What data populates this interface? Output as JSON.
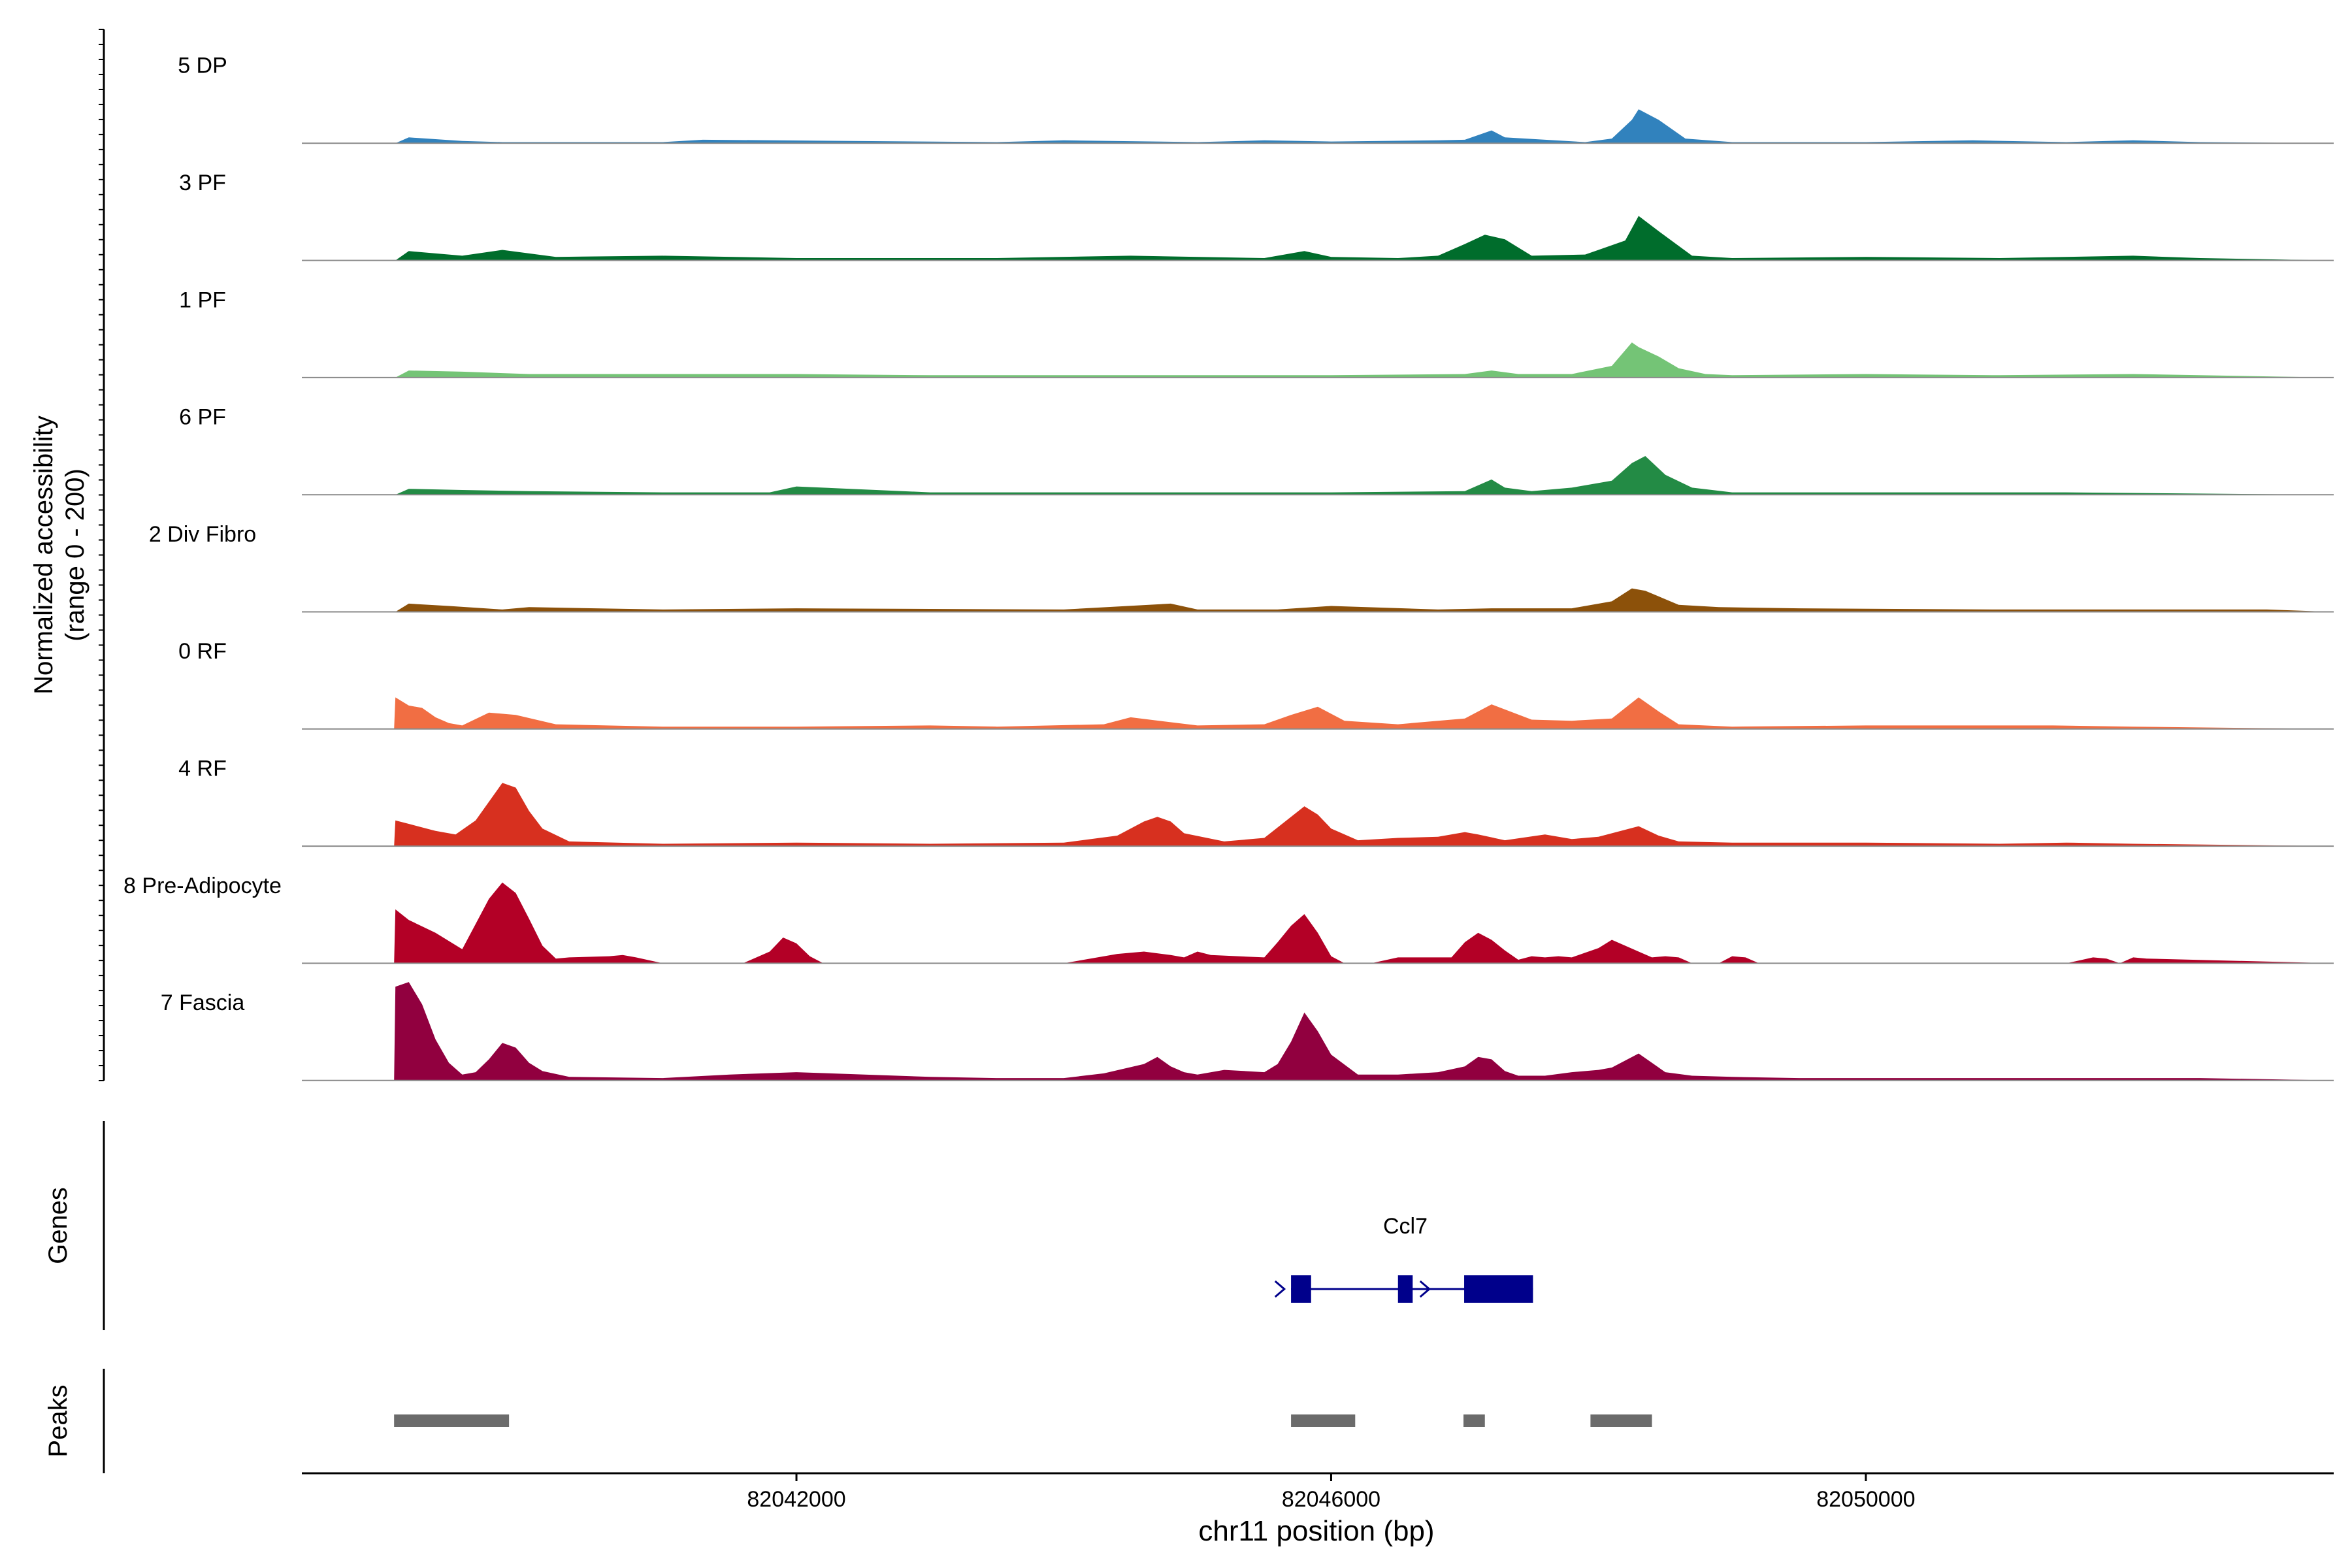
{
  "chart_data": {
    "type": "area",
    "ylabel": "Normalized accessibility",
    "ylabel_range": "(range 0 - 200)",
    "xlabel": "chr11 position (bp)",
    "xlim": [
      82038300,
      82053500
    ],
    "ylim": [
      0,
      200
    ],
    "x_ticks": [
      "82042000",
      "82046000",
      "82050000"
    ],
    "tracks": [
      {
        "name": "5 DP",
        "color": "#3182BD",
        "x": [
          82038300,
          82039000,
          82039100,
          82039500,
          82039800,
          82041000,
          82041300,
          82043500,
          82044000,
          82045000,
          82045500,
          82046000,
          82046800,
          82047000,
          82047200,
          82047300,
          82047900,
          82048100,
          82048250,
          82048300,
          82048450,
          82048650,
          82049000,
          82050000,
          82050800,
          82051500,
          82052000,
          82052500,
          82053500
        ],
        "y": [
          0,
          0,
          10,
          4,
          2,
          2,
          6,
          2,
          5,
          2,
          5,
          3,
          5,
          6,
          22,
          10,
          2,
          8,
          40,
          58,
          40,
          8,
          2,
          2,
          5,
          2,
          5,
          2,
          0
        ]
      },
      {
        "name": "3 PF",
        "color": "#006D2C",
        "x": [
          82038300,
          82039000,
          82039100,
          82039500,
          82039800,
          82040200,
          82041000,
          82042000,
          82043500,
          82044500,
          82045500,
          82045800,
          82046000,
          82046500,
          82046800,
          82047000,
          82047150,
          82047300,
          82047500,
          82047900,
          82048000,
          82048200,
          82048300,
          82048450,
          82048700,
          82049000,
          82050000,
          82051000,
          82052000,
          82052500,
          82053500
        ],
        "y": [
          0,
          0,
          16,
          8,
          18,
          6,
          8,
          4,
          4,
          8,
          4,
          16,
          6,
          4,
          8,
          28,
          44,
          36,
          8,
          10,
          18,
          34,
          76,
          50,
          8,
          4,
          6,
          4,
          8,
          4,
          0
        ]
      },
      {
        "name": "1 PF",
        "color": "#74C476",
        "x": [
          82038300,
          82039000,
          82039100,
          82039500,
          82040000,
          82041000,
          82042000,
          82043000,
          82044000,
          82045000,
          82046000,
          82047000,
          82047200,
          82047400,
          82047800,
          82048100,
          82048250,
          82048300,
          82048450,
          82048600,
          82048800,
          82049000,
          82050000,
          82051000,
          82052000,
          82053500
        ],
        "y": [
          0,
          0,
          12,
          10,
          6,
          6,
          6,
          4,
          4,
          4,
          4,
          6,
          12,
          6,
          6,
          20,
          60,
          52,
          36,
          16,
          6,
          4,
          6,
          4,
          6,
          0
        ]
      },
      {
        "name": "6 PF",
        "color": "#238B45",
        "x": [
          82038300,
          82039000,
          82039100,
          82039500,
          82040000,
          82041000,
          82041800,
          82042000,
          82043000,
          82044000,
          82045000,
          82046000,
          82047000,
          82047200,
          82047300,
          82047500,
          82047800,
          82048100,
          82048250,
          82048350,
          82048500,
          82048700,
          82049000,
          82050000,
          82051500,
          82053500
        ],
        "y": [
          0,
          0,
          10,
          8,
          6,
          4,
          4,
          14,
          4,
          4,
          4,
          4,
          6,
          26,
          12,
          6,
          12,
          24,
          54,
          66,
          34,
          12,
          4,
          4,
          4,
          0
        ]
      },
      {
        "name": "2 Div Fibro",
        "color": "#8C510A",
        "x": [
          82038300,
          82039000,
          82039100,
          82039400,
          82039800,
          82040000,
          82041000,
          82042000,
          82044000,
          82044800,
          82045000,
          82045600,
          82046000,
          82046800,
          82047200,
          82047800,
          82048100,
          82048250,
          82048350,
          82048600,
          82048900,
          82049500,
          82051000,
          82053000,
          82053500
        ],
        "y": [
          0,
          0,
          14,
          10,
          4,
          8,
          4,
          6,
          4,
          14,
          4,
          4,
          10,
          4,
          6,
          6,
          18,
          40,
          36,
          12,
          8,
          6,
          4,
          4,
          0
        ]
      },
      {
        "name": "0 RF",
        "color": "#F16E43",
        "x": [
          82038300,
          82038990,
          82039000,
          82039100,
          82039200,
          82039300,
          82039400,
          82039500,
          82039700,
          82039900,
          82040200,
          82041000,
          82042000,
          82043000,
          82043500,
          82044300,
          82044500,
          82045000,
          82045500,
          82045700,
          82045900,
          82046100,
          82046500,
          82047000,
          82047200,
          82047500,
          82047800,
          82048100,
          82048300,
          82048450,
          82048600,
          82049000,
          82050000,
          82051400,
          82052000,
          82053500
        ],
        "y": [
          0,
          0,
          54,
          40,
          36,
          20,
          10,
          6,
          28,
          24,
          8,
          4,
          4,
          6,
          4,
          8,
          20,
          6,
          8,
          24,
          38,
          14,
          8,
          18,
          42,
          16,
          14,
          18,
          54,
          30,
          8,
          4,
          6,
          6,
          4,
          0
        ]
      },
      {
        "name": "4 RF",
        "color": "#D7301F",
        "x": [
          82038300,
          82038990,
          82039000,
          82039100,
          82039300,
          82039450,
          82039600,
          82039800,
          82039900,
          82040000,
          82040100,
          82040300,
          82041000,
          82042000,
          82043000,
          82044000,
          82044400,
          82044600,
          82044700,
          82044800,
          82044900,
          82045200,
          82045500,
          82045700,
          82045800,
          82045900,
          82046000,
          82046200,
          82046500,
          82046800,
          82047000,
          82047100,
          82047300,
          82047600,
          82047800,
          82048000,
          82048300,
          82048450,
          82048600,
          82049000,
          82050000,
          82051000,
          82051500,
          82052000,
          82053500
        ],
        "y": [
          0,
          0,
          44,
          38,
          26,
          20,
          44,
          108,
          100,
          60,
          30,
          8,
          4,
          6,
          4,
          6,
          18,
          42,
          50,
          42,
          22,
          8,
          14,
          50,
          68,
          54,
          30,
          10,
          14,
          16,
          24,
          20,
          10,
          20,
          12,
          16,
          34,
          18,
          8,
          6,
          6,
          4,
          6,
          4,
          0
        ]
      },
      {
        "name": "8 Pre-Adipocyte",
        "color": "#B30026",
        "x": [
          82038300,
          82038990,
          82039000,
          82039100,
          82039300,
          82039500,
          82039700,
          82039800,
          82039900,
          82040000,
          82040100,
          82040200,
          82040300,
          82040600,
          82040700,
          82040800,
          82041000,
          82041200,
          82041300,
          82041400,
          82041500,
          82041600,
          82041800,
          82041900,
          82042000,
          82042100,
          82042200,
          82043000,
          82044000,
          82044400,
          82044600,
          82044800,
          82044900,
          82045000,
          82045100,
          82045500,
          82045600,
          82045700,
          82045800,
          82045900,
          82046000,
          82046100,
          82046300,
          82046500,
          82046700,
          82046900,
          82047000,
          82047100,
          82047200,
          82047300,
          82047400,
          82047500,
          82047600,
          82047700,
          82047800,
          82047900,
          82048000,
          82048100,
          82048200,
          82048300,
          82048400,
          82048500,
          82048600,
          82048700,
          82048900,
          82049000,
          82049100,
          82049200,
          82050000,
          82051500,
          82051700,
          82051800,
          82051900,
          82052000,
          82052100,
          82053500
        ],
        "y": [
          0,
          0,
          92,
          74,
          52,
          24,
          110,
          138,
          120,
          76,
          30,
          8,
          10,
          12,
          14,
          10,
          0,
          0,
          0,
          0,
          0,
          0,
          20,
          44,
          34,
          12,
          0,
          0,
          0,
          16,
          20,
          14,
          10,
          20,
          14,
          10,
          36,
          64,
          84,
          52,
          12,
          0,
          0,
          10,
          10,
          10,
          36,
          52,
          40,
          22,
          6,
          12,
          10,
          12,
          10,
          18,
          26,
          40,
          30,
          20,
          10,
          12,
          10,
          0,
          0,
          12,
          10,
          0,
          0,
          0,
          10,
          8,
          0,
          10,
          8,
          0
        ]
      },
      {
        "name": "7 Fascia",
        "color": "#91003F",
        "x": [
          82038300,
          82038990,
          82039000,
          82039100,
          82039200,
          82039300,
          82039400,
          82039500,
          82039600,
          82039700,
          82039800,
          82039900,
          82040000,
          82040100,
          82040300,
          82041000,
          82041500,
          82042000,
          82043000,
          82043500,
          82044000,
          82044300,
          82044600,
          82044700,
          82044800,
          82044900,
          82045000,
          82045200,
          82045500,
          82045600,
          82045700,
          82045800,
          82045900,
          82046000,
          82046200,
          82046500,
          82046800,
          82047000,
          82047100,
          82047200,
          82047300,
          82047400,
          82047600,
          82047800,
          82048000,
          82048100,
          82048300,
          82048400,
          82048500,
          82048700,
          82049000,
          82049500,
          82050000,
          82051000,
          82052000,
          82052500,
          82053500
        ],
        "y": [
          0,
          0,
          160,
          168,
          130,
          70,
          30,
          10,
          14,
          36,
          64,
          56,
          30,
          16,
          6,
          4,
          10,
          14,
          6,
          4,
          4,
          12,
          28,
          40,
          24,
          14,
          10,
          18,
          14,
          28,
          66,
          116,
          84,
          44,
          10,
          10,
          14,
          24,
          40,
          36,
          16,
          8,
          8,
          14,
          18,
          22,
          46,
          30,
          14,
          8,
          6,
          4,
          4,
          4,
          4,
          4,
          0
        ]
      }
    ],
    "genes": {
      "label": "Genes",
      "name": "Ccl7",
      "start": 82045700,
      "end": 82047510,
      "exons": [
        [
          82045700,
          82045850
        ],
        [
          82046500,
          82046610
        ],
        [
          82046995,
          82047510
        ]
      ]
    },
    "peaks": {
      "label": "Peaks",
      "regions": [
        [
          82038990,
          82039850
        ],
        [
          82045700,
          82046180
        ],
        [
          82046990,
          82047150
        ],
        [
          82047940,
          82048400
        ]
      ]
    }
  }
}
